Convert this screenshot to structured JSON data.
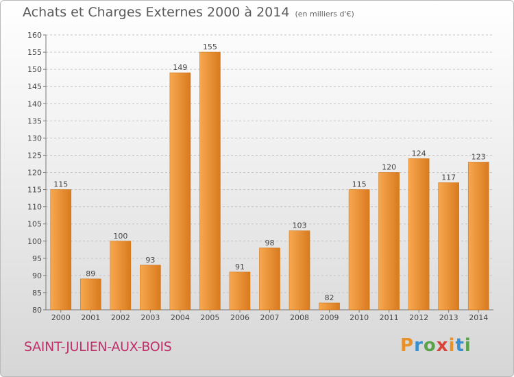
{
  "header": {
    "title": "Achats et Charges Externes 2000 à 2014",
    "unit": "(en milliers d'€)"
  },
  "footer": {
    "town": "SAINT-JULIEN-AUX-BOIS",
    "brand": "Proxiti"
  },
  "colors": {
    "bar_light": "#f7a850",
    "bar_dark": "#d97a1e",
    "town_text": "#c0306a"
  },
  "chart_data": {
    "type": "bar",
    "title": "Achats et Charges Externes 2000 à 2014",
    "subtitle": "(en milliers d'€)",
    "categories": [
      "2000",
      "2001",
      "2002",
      "2003",
      "2004",
      "2005",
      "2006",
      "2007",
      "2008",
      "2009",
      "2010",
      "2011",
      "2012",
      "2013",
      "2014"
    ],
    "values": [
      115,
      89,
      100,
      93,
      149,
      155,
      91,
      98,
      103,
      82,
      115,
      120,
      124,
      117,
      123
    ],
    "ylim": [
      80,
      160
    ],
    "yticks": [
      80,
      85,
      90,
      95,
      100,
      105,
      110,
      115,
      120,
      125,
      130,
      135,
      140,
      145,
      150,
      155,
      160
    ],
    "grid": "horizontal dashed",
    "legend": "none"
  }
}
